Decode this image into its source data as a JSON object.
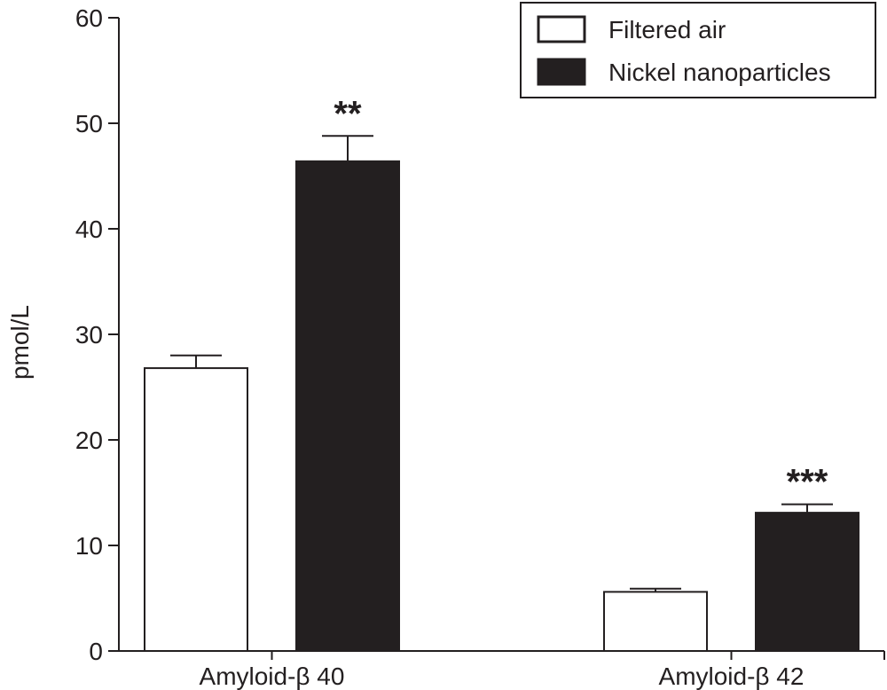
{
  "chart_data": {
    "type": "bar",
    "title": "",
    "xlabel": "",
    "ylabel": "pmol/L",
    "ylim": [
      0,
      60
    ],
    "yticks": [
      0,
      10,
      20,
      30,
      40,
      50,
      60
    ],
    "categories": [
      "Amyloid-β 40",
      "Amyloid-β 42"
    ],
    "series": [
      {
        "name": "Filtered air",
        "values": [
          26.8,
          5.6
        ],
        "errors": [
          1.2,
          0.3
        ],
        "fill": "#ffffff",
        "stroke": "#231f20"
      },
      {
        "name": "Nickel nanoparticles",
        "values": [
          46.4,
          13.1
        ],
        "errors": [
          2.4,
          0.8
        ],
        "fill": "#231f20",
        "stroke": "#231f20"
      }
    ],
    "annotations": [
      {
        "category": 0,
        "series": 1,
        "text": "**"
      },
      {
        "category": 1,
        "series": 1,
        "text": "***"
      }
    ],
    "grid": false,
    "legend": "top-right"
  }
}
